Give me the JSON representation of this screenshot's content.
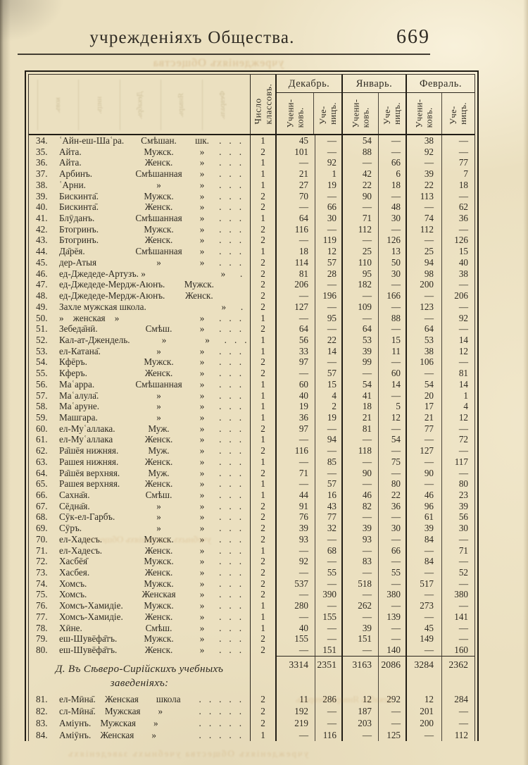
{
  "page": {
    "running_title": "учрежденіяхъ Общества.",
    "page_number": "669"
  },
  "table": {
    "head": {
      "classes": [
        "Число",
        "классовъ."
      ],
      "months": [
        "Декабрь.",
        "Январь.",
        "Февраль."
      ],
      "pupils_m": [
        "Учени-",
        "ковъ."
      ],
      "pupils_f": [
        "Уче-",
        "ницъ."
      ]
    },
    "rows": [
      {
        "num": "34.",
        "name": "ʿАйн-еш-Шаʿра.",
        "type": "Смѣшан.",
        "ditto": "шк.",
        "dots": "...",
        "cl": "1",
        "dm": "45",
        "df": "—",
        "jm": "54",
        "jf": "—",
        "fm": "38",
        "ff": "—"
      },
      {
        "num": "35.",
        "name": "Айта.",
        "type": "Мужск.",
        "ditto": "»",
        "dots": "...",
        "cl": "2",
        "dm": "101",
        "df": "—",
        "jm": "88",
        "jf": "—",
        "fm": "92",
        "ff": "—"
      },
      {
        "num": "36.",
        "name": "Айта.",
        "type": "Женск.",
        "ditto": "»",
        "dots": "...",
        "cl": "1",
        "dm": "—",
        "df": "92",
        "jm": "—",
        "jf": "66",
        "fm": "—",
        "ff": "77"
      },
      {
        "num": "37.",
        "name": "Арбинъ.",
        "type": "Смѣшанная",
        "ditto": "»",
        "dots": "...",
        "cl": "1",
        "dm": "21",
        "df": "1",
        "jm": "42",
        "jf": "6",
        "fm": "39",
        "ff": "7"
      },
      {
        "num": "38.",
        "name": "ʿАрни.",
        "type": "»",
        "ditto": "»",
        "dots": "...",
        "cl": "1",
        "dm": "27",
        "df": "19",
        "jm": "22",
        "jf": "18",
        "fm": "22",
        "ff": "18"
      },
      {
        "num": "39.",
        "name": "Бискинта̄.",
        "type": "Мужск.",
        "ditto": "»",
        "dots": "...",
        "cl": "2",
        "dm": "70",
        "df": "—",
        "jm": "90",
        "jf": "—",
        "fm": "113",
        "ff": "—"
      },
      {
        "num": "40.",
        "name": "Бискинта̄.",
        "type": "Женск.",
        "ditto": "»",
        "dots": "...",
        "cl": "2",
        "dm": "—",
        "df": "66",
        "jm": "—",
        "jf": "48",
        "fm": "—",
        "ff": "62"
      },
      {
        "num": "41.",
        "name": "Блӯданъ.",
        "type": "Смѣшанная",
        "ditto": "»",
        "dots": "...",
        "cl": "1",
        "dm": "64",
        "df": "30",
        "jm": "71",
        "jf": "30",
        "fm": "74",
        "ff": "36"
      },
      {
        "num": "42.",
        "name": "Бтогринъ.",
        "type": "Мужск.",
        "ditto": "»",
        "dots": "...",
        "cl": "2",
        "dm": "116",
        "df": "—",
        "jm": "112",
        "jf": "—",
        "fm": "112",
        "ff": "—"
      },
      {
        "num": "43.",
        "name": "Бтогринъ.",
        "type": "Женск.",
        "ditto": "»",
        "dots": "...",
        "cl": "2",
        "dm": "—",
        "df": "119",
        "jm": "—",
        "jf": "126",
        "fm": "—",
        "ff": "126"
      },
      {
        "num": "44.",
        "name": "Да̄рēя.",
        "type": "Смѣшанная",
        "ditto": "»",
        "dots": "...",
        "cl": "1",
        "dm": "18",
        "df": "12",
        "jm": "25",
        "jf": "13",
        "fm": "25",
        "ff": "15"
      },
      {
        "num": "45.",
        "name": "дер-Атыя",
        "type": "»",
        "ditto": "»",
        "dots": "...",
        "cl": "2",
        "dm": "114",
        "df": "57",
        "jm": "110",
        "jf": "50",
        "fm": "94",
        "ff": "40"
      },
      {
        "num": "46.",
        "name": "ед-Джедеде-Артузъ. »",
        "type": "",
        "ditto": "»",
        "dots": "...",
        "cl": "2",
        "dm": "81",
        "df": "28",
        "jm": "95",
        "jf": "30",
        "fm": "98",
        "ff": "38"
      },
      {
        "num": "47.",
        "name": "ед-Джедеде-Мердж-Аюнъ.",
        "type": "Мужск.",
        "ditto": "",
        "dots": "..",
        "cl": "2",
        "dm": "206",
        "df": "—",
        "jm": "182",
        "jf": "—",
        "fm": "200",
        "ff": "—"
      },
      {
        "num": "48.",
        "name": "ед-Джедеде-Мердж-Аюнъ.",
        "type": "Женск.",
        "ditto": "",
        "dots": "..",
        "cl": "2",
        "dm": "—",
        "df": "196",
        "jm": "—",
        "jf": "166",
        "fm": "—",
        "ff": "206"
      },
      {
        "num": "49.",
        "name": "Захле мужская школа.",
        "type": "",
        "ditto": "»",
        "dots": "...",
        "cl": "2",
        "dm": "127",
        "df": "—",
        "jm": "109",
        "jf": "—",
        "fm": "123",
        "ff": "—"
      },
      {
        "num": "50.",
        "name": "» женская »",
        "type": "",
        "ditto": "»",
        "dots": "...",
        "cl": "1",
        "dm": "—",
        "df": "95",
        "jm": "—",
        "jf": "88",
        "fm": "—",
        "ff": "92"
      },
      {
        "num": "51.",
        "name": "Зебеда̄нӣ.",
        "type": "Смѣш.",
        "ditto": "»",
        "dots": "...",
        "cl": "2",
        "dm": "64",
        "df": "—",
        "jm": "64",
        "jf": "—",
        "fm": "64",
        "ff": "—"
      },
      {
        "num": "52.",
        "name": "Кал-ат-Джендель.",
        "type": "»",
        "ditto": "»",
        "dots": "...",
        "cl": "1",
        "dm": "56",
        "df": "22",
        "jm": "53",
        "jf": "15",
        "fm": "53",
        "ff": "14"
      },
      {
        "num": "53.",
        "name": "ел-Катана̄.",
        "type": "»",
        "ditto": "»",
        "dots": "...",
        "cl": "1",
        "dm": "33",
        "df": "14",
        "jm": "39",
        "jf": "11",
        "fm": "38",
        "ff": "12"
      },
      {
        "num": "54.",
        "name": "Кфēръ.",
        "type": "Мужск.",
        "ditto": "»",
        "dots": "...",
        "cl": "2",
        "dm": "97",
        "df": "—",
        "jm": "99",
        "jf": "—",
        "fm": "106",
        "ff": "—"
      },
      {
        "num": "55.",
        "name": "Кферъ.",
        "type": "Женск.",
        "ditto": "»",
        "dots": "...",
        "cl": "2",
        "dm": "—",
        "df": "57",
        "jm": "—",
        "jf": "60",
        "fm": "—",
        "ff": "81"
      },
      {
        "num": "56.",
        "name": "Маʿарра.",
        "type": "Смѣшанная",
        "ditto": "»",
        "dots": "...",
        "cl": "1",
        "dm": "60",
        "df": "15",
        "jm": "54",
        "jf": "14",
        "fm": "54",
        "ff": "14"
      },
      {
        "num": "57.",
        "name": "Маʿалула̄.",
        "type": "»",
        "ditto": "»",
        "dots": "...",
        "cl": "1",
        "dm": "40",
        "df": "4",
        "jm": "41",
        "jf": "—",
        "fm": "20",
        "ff": "1"
      },
      {
        "num": "58.",
        "name": "Маʿаруне.",
        "type": "»",
        "ditto": "»",
        "dots": "...",
        "cl": "1",
        "dm": "19",
        "df": "2",
        "jm": "18",
        "jf": "5",
        "fm": "17",
        "ff": "4"
      },
      {
        "num": "59.",
        "name": "Машгара.",
        "type": "»",
        "ditto": "»",
        "dots": "...",
        "cl": "1",
        "dm": "36",
        "df": "19",
        "jm": "21",
        "jf": "12",
        "fm": "21",
        "ff": "12"
      },
      {
        "num": "60.",
        "name": "ел-Муʿаллака.",
        "type": "Муж.",
        "ditto": "»",
        "dots": "...",
        "cl": "2",
        "dm": "97",
        "df": "—",
        "jm": "81",
        "jf": "—",
        "fm": "77",
        "ff": "—"
      },
      {
        "num": "61.",
        "name": "ел-Муʿаллака",
        "type": "Женск.",
        "ditto": "»",
        "dots": "...",
        "cl": "1",
        "dm": "—",
        "df": "94",
        "jm": "—",
        "jf": "54",
        "fm": "—",
        "ff": "72"
      },
      {
        "num": "62.",
        "name": "Ра̄шēя нижняя.",
        "type": "Муж.",
        "ditto": "»",
        "dots": "...",
        "cl": "2",
        "dm": "116",
        "df": "—",
        "jm": "118",
        "jf": "—",
        "fm": "127",
        "ff": "—"
      },
      {
        "num": "63.",
        "name": "Рашея нижняя.",
        "type": "Женск.",
        "ditto": "»",
        "dots": "...",
        "cl": "1",
        "dm": "—",
        "df": "85",
        "jm": "—",
        "jf": "75",
        "fm": "—",
        "ff": "117"
      },
      {
        "num": "64.",
        "name": "Ра̄шēя верхняя.",
        "type": "Муж.",
        "ditto": "»",
        "dots": "...",
        "cl": "2",
        "dm": "71",
        "df": "—",
        "jm": "90",
        "jf": "—",
        "fm": "90",
        "ff": "—"
      },
      {
        "num": "65.",
        "name": "Рашея верхняя.",
        "type": "Женск.",
        "ditto": "»",
        "dots": "...",
        "cl": "1",
        "dm": "—",
        "df": "57",
        "jm": "—",
        "jf": "80",
        "fm": "—",
        "ff": "80"
      },
      {
        "num": "66.",
        "name": "Сахна̄я.",
        "type": "Смѣш.",
        "ditto": "»",
        "dots": "...",
        "cl": "1",
        "dm": "44",
        "df": "16",
        "jm": "46",
        "jf": "22",
        "fm": "46",
        "ff": "23"
      },
      {
        "num": "67.",
        "name": "Сēдна̄я.",
        "type": "»",
        "ditto": "»",
        "dots": "...",
        "cl": "2",
        "dm": "91",
        "df": "43",
        "jm": "82",
        "jf": "36",
        "fm": "96",
        "ff": "39"
      },
      {
        "num": "68.",
        "name": "Сӯк-ел-Гарбъ.",
        "type": "»",
        "ditto": "»",
        "dots": "...",
        "cl": "2",
        "dm": "76",
        "df": "77",
        "jm": "—",
        "jf": "—",
        "fm": "61",
        "ff": "56"
      },
      {
        "num": "69.",
        "name": "Сӯръ.",
        "type": "»",
        "ditto": "»",
        "dots": "...",
        "cl": "2",
        "dm": "39",
        "df": "32",
        "jm": "39",
        "jf": "30",
        "fm": "39",
        "ff": "30"
      },
      {
        "num": "70.",
        "name": "ел-Хадесъ.",
        "type": "Мужск.",
        "ditto": "»",
        "dots": "...",
        "cl": "2",
        "dm": "93",
        "df": "—",
        "jm": "93",
        "jf": "—",
        "fm": "84",
        "ff": "—"
      },
      {
        "num": "71.",
        "name": "ел-Хадесъ.",
        "type": "Женск.",
        "ditto": "»",
        "dots": "...",
        "cl": "1",
        "dm": "—",
        "df": "68",
        "jm": "—",
        "jf": "66",
        "fm": "—",
        "ff": "71"
      },
      {
        "num": "72.",
        "name": "Хасбēя̄",
        "type": "Мужск.",
        "ditto": "»",
        "dots": "...",
        "cl": "2",
        "dm": "92",
        "df": "—",
        "jm": "83",
        "jf": "—",
        "fm": "84",
        "ff": "—"
      },
      {
        "num": "73.",
        "name": "Хасбея.",
        "type": "Женск.",
        "ditto": "»",
        "dots": "...",
        "cl": "2",
        "dm": "—",
        "df": "55",
        "jm": "—",
        "jf": "55",
        "fm": "—",
        "ff": "52"
      },
      {
        "num": "74.",
        "name": "Хомсъ.",
        "type": "Мужск.",
        "ditto": "»",
        "dots": "...",
        "cl": "2",
        "dm": "537",
        "df": "—",
        "jm": "518",
        "jf": "—",
        "fm": "517",
        "ff": "—"
      },
      {
        "num": "75.",
        "name": "Хомсъ.",
        "type": "Женская",
        "ditto": "»",
        "dots": "...",
        "cl": "2",
        "dm": "—",
        "df": "390",
        "jm": "—",
        "jf": "380",
        "fm": "—",
        "ff": "380"
      },
      {
        "num": "76.",
        "name": "Хомсъ-Хамидіе.",
        "type": "Мужск.",
        "ditto": "»",
        "dots": "...",
        "cl": "1",
        "dm": "280",
        "df": "—",
        "jm": "262",
        "jf": "—",
        "fm": "273",
        "ff": "—"
      },
      {
        "num": "77.",
        "name": "Хомсъ-Хамидіе.",
        "type": "Женск.",
        "ditto": "»",
        "dots": "...",
        "cl": "1",
        "dm": "—",
        "df": "155",
        "jm": "—",
        "jf": "139",
        "fm": "—",
        "ff": "141"
      },
      {
        "num": "78.",
        "name": "Хӣне.",
        "type": "Смѣш.",
        "ditto": "»",
        "dots": "...",
        "cl": "1",
        "dm": "40",
        "df": "—",
        "jm": "39",
        "jf": "—",
        "fm": "45",
        "ff": "—"
      },
      {
        "num": "79.",
        "name": "еш-Шувēфа̄тъ.",
        "type": "Мужск.",
        "ditto": "»",
        "dots": "...",
        "cl": "2",
        "dm": "155",
        "df": "—",
        "jm": "151",
        "jf": "—",
        "fm": "149",
        "ff": "—"
      },
      {
        "num": "80.",
        "name": "еш-Шувēфа̄тъ.",
        "type": "Женск.",
        "ditto": "»",
        "dots": "...",
        "cl": "2",
        "dm": "—",
        "df": "151",
        "jm": "—",
        "jf": "140",
        "fm": "—",
        "ff": "160"
      }
    ],
    "totals": {
      "dm": "3314",
      "df": "2351",
      "jm": "3163",
      "jf": "2086",
      "fm": "3284",
      "ff": "2362"
    },
    "section_heading": {
      "line1": "Д. Въ Сѣверо-Сирійскихъ учебныхъ",
      "line2": "заведеніяхъ:"
    },
    "rows_d": [
      {
        "num": "81.",
        "name": "ел-Мӣна̄.",
        "type": "Женская",
        "ditto": "школа",
        "dots": ".....",
        "cl": "2",
        "dm": "11",
        "df": "286",
        "jm": "12",
        "jf": "292",
        "fm": "12",
        "ff": "284"
      },
      {
        "num": "82.",
        "name": "сл-Мӣна̄.",
        "type": "Мужская",
        "ditto": "»",
        "dots": ".....",
        "cl": "2",
        "dm": "192",
        "df": "—",
        "jm": "187",
        "jf": "—",
        "fm": "201",
        "ff": "—"
      },
      {
        "num": "83.",
        "name": "Аміунъ.",
        "type": "Мужская",
        "ditto": "»",
        "dots": ".....",
        "cl": "2",
        "dm": "219",
        "df": "—",
        "jm": "203",
        "jf": "—",
        "fm": "200",
        "ff": "—"
      },
      {
        "num": "84.",
        "name": "Аміӯнъ.",
        "type": "Женская",
        "ditto": "»",
        "dots": ".....",
        "cl": "1",
        "dm": "—",
        "df": "116",
        "jm": "—",
        "jf": "125",
        "fm": "—",
        "ff": "112"
      }
    ]
  },
  "bleedthrough": {
    "title": "учрежденіяхъ Общества",
    "cols": [
      "Февраль.",
      "Январь.",
      "Декабрь.",
      "ницъ.",
      "ковъ."
    ],
    "snippets": [
      "учебныхъ заведеніяхъ Общества",
      "Декабрь Январь Февраль",
      "учрежденіяхъ Общества учебныхъ заведеніяхъ"
    ]
  },
  "colors": {
    "paper": "#ebe0c0",
    "ink": "#2e2a22",
    "rule": "#2b261e",
    "thick_line": "#211d15",
    "thin_line": "#4a443a",
    "ghost": "#b9813e"
  }
}
